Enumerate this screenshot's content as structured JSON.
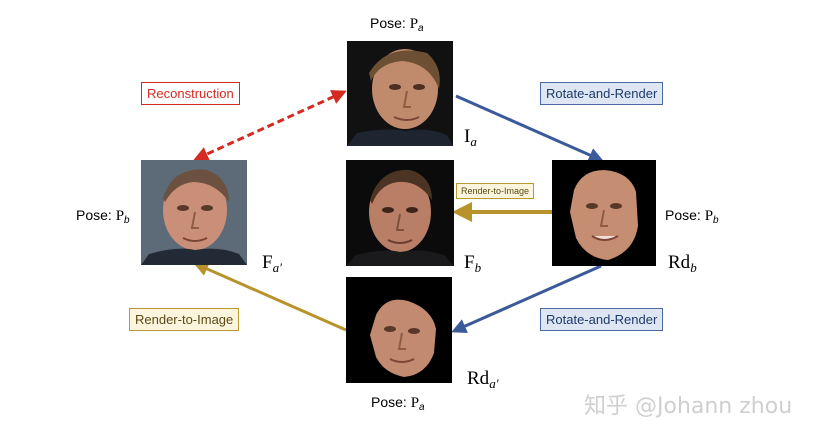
{
  "labels": {
    "pose_top": {
      "prefix": "Pose: ",
      "sym": "P",
      "sub": "a"
    },
    "pose_left": {
      "prefix": "Pose: ",
      "sym": "P",
      "sub": "b"
    },
    "pose_right": {
      "prefix": "Pose: ",
      "sym": "P",
      "sub": "b"
    },
    "pose_bottom": {
      "prefix": "Pose: ",
      "sym": "P",
      "sub": "a"
    },
    "ia": {
      "main": "I",
      "sub": "a"
    },
    "fa_prime": {
      "main": "F",
      "sub": "a′"
    },
    "fb": {
      "main": "F",
      "sub": "b"
    },
    "rdb": {
      "main": "Rd",
      "sub": "b"
    },
    "rda_prime": {
      "main": "Rd",
      "sub": "a′"
    }
  },
  "tags": {
    "reconstruction": "Reconstruction",
    "rotate_top": "Rotate-and-Render",
    "render_middle": "Render-to-Image",
    "rotate_bottom": "Rotate-and-Render",
    "render_bottom": "Render-to-Image"
  },
  "watermark": "知乎 @Johann zhou",
  "colors": {
    "reconstruction": "#d42a22",
    "rotate": "#3b5a9a",
    "render": "#b8932c"
  }
}
